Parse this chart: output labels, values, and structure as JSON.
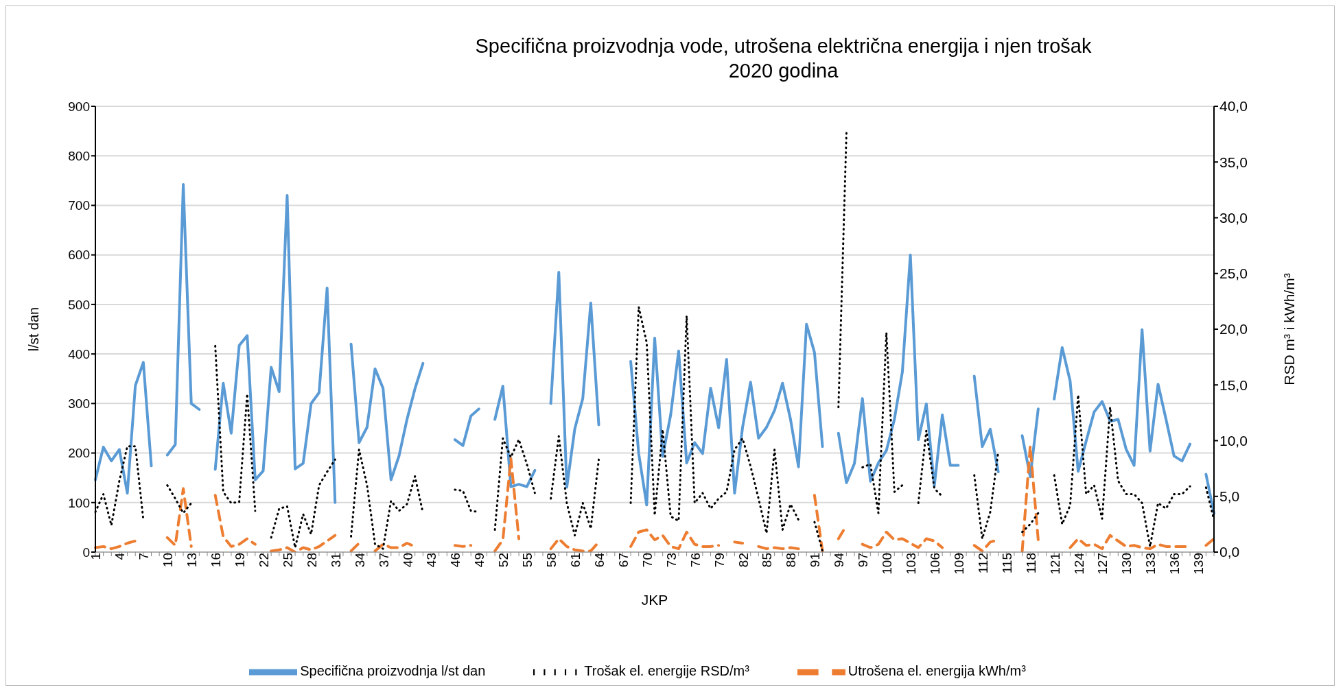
{
  "chart_data": {
    "type": "line",
    "title": "Specifična proizvodnja vode, utrošena električna energija i njen trošak",
    "subtitle": "2020 godina",
    "xlabel": "JKP",
    "ylabel": "l/st dan",
    "y2label": "RSD m³ i  kWh/m³",
    "categories": [
      "1",
      null,
      null,
      "4",
      null,
      null,
      "7",
      null,
      null,
      "10",
      null,
      null,
      "13",
      null,
      null,
      "16",
      null,
      null,
      "19",
      null,
      null,
      "22",
      null,
      null,
      "25",
      null,
      null,
      "28",
      null,
      null,
      "31",
      null,
      null,
      "34",
      null,
      null,
      "37",
      null,
      null,
      "40",
      null,
      null,
      "43",
      null,
      null,
      "46",
      null,
      null,
      "49",
      null,
      null,
      "52",
      null,
      null,
      "55",
      null,
      null,
      "58",
      null,
      null,
      "61",
      null,
      null,
      "64",
      null,
      null,
      "67",
      null,
      null,
      "70",
      null,
      null,
      "73",
      null,
      null,
      "76",
      null,
      null,
      "79",
      null,
      null,
      "82",
      null,
      null,
      "85",
      null,
      null,
      "88",
      null,
      null,
      "91",
      null,
      null,
      "94",
      null,
      null,
      "97",
      null,
      null,
      "100",
      null,
      null,
      "103",
      null,
      null,
      "106",
      null,
      null,
      "109",
      null,
      null,
      "112",
      null,
      null,
      "115",
      null,
      null,
      "118",
      null,
      null,
      "121",
      null,
      null,
      "124",
      null,
      null,
      "127",
      null,
      null,
      "130",
      null,
      null,
      "133",
      null,
      null,
      "136",
      null,
      null,
      "139",
      null,
      null
    ],
    "series": [
      {
        "name": "Specifična proizvodnja l/st dan",
        "color": "#5b9bd5",
        "line_style": "solid",
        "values": [
          146,
          212,
          184,
          207,
          119,
          336,
          383,
          174,
          null,
          196,
          217,
          742,
          300,
          288,
          null,
          167,
          341,
          240,
          417,
          437,
          146,
          164,
          373,
          324,
          720,
          168,
          179,
          300,
          322,
          533,
          100,
          null,
          420,
          221,
          252,
          370,
          331,
          146,
          194,
          268,
          330,
          381,
          null,
          null,
          null,
          227,
          215,
          275,
          289,
          null,
          268,
          335,
          132,
          137,
          132,
          165,
          null,
          300,
          565,
          131,
          249,
          310,
          503,
          257,
          null,
          null,
          null,
          385,
          199,
          95,
          432,
          193,
          277,
          406,
          180,
          221,
          199,
          331,
          251,
          389,
          119,
          252,
          343,
          230,
          252,
          286,
          341,
          268,
          172,
          460,
          403,
          213,
          null,
          240,
          140,
          179,
          310,
          143,
          180,
          205,
          268,
          364,
          600,
          227,
          299,
          134,
          277,
          175,
          175,
          null,
          355,
          213,
          248,
          162,
          null,
          null,
          235,
          152,
          289,
          null,
          309,
          413,
          345,
          163,
          224,
          283,
          304,
          264,
          268,
          208,
          175,
          449,
          204,
          339,
          268,
          194,
          184,
          218,
          null,
          157,
          78
        ]
      },
      {
        "name": "Utrošena el. energija kWh/m³",
        "color": "#ed7d31",
        "line_style": "dashed",
        "axis": "y2",
        "values": [
          0.4,
          0.5,
          0.3,
          0.5,
          0.8,
          1.0,
          null,
          null,
          null,
          1.3,
          0.6,
          5.7,
          0.5,
          null,
          null,
          5.1,
          1.4,
          0.5,
          0.7,
          1.2,
          0.7,
          null,
          0.1,
          0.2,
          0.4,
          0.0,
          0.4,
          0.2,
          0.5,
          1.0,
          1.5,
          null,
          0.1,
          0.8,
          null,
          0.1,
          0.7,
          0.4,
          0.4,
          0.8,
          0.5,
          null,
          null,
          null,
          null,
          0.6,
          0.5,
          0.6,
          null,
          null,
          0.1,
          1.1,
          8.4,
          1.2,
          null,
          null,
          null,
          0.3,
          1.2,
          0.5,
          0.2,
          0.1,
          0.1,
          0.9,
          null,
          null,
          null,
          0.5,
          1.8,
          2.0,
          1.1,
          1.5,
          0.5,
          0.3,
          1.8,
          0.7,
          0.5,
          0.5,
          0.6,
          null,
          0.9,
          0.8,
          null,
          0.5,
          0.3,
          0.4,
          0.3,
          0.4,
          0.3,
          null,
          5.1,
          0.1,
          null,
          1.2,
          2.4,
          null,
          0.7,
          0.4,
          0.7,
          1.8,
          1.1,
          1.2,
          0.8,
          0.4,
          1.2,
          1.0,
          0.4,
          null,
          null,
          null,
          0.6,
          0.1,
          0.9,
          1.1,
          null,
          null,
          0.1,
          9.5,
          1.1,
          null,
          null,
          null,
          0.4,
          1.2,
          0.6,
          0.7,
          0.3,
          1.5,
          1.0,
          0.5,
          0.6,
          0.4,
          0.3,
          0.7,
          0.5,
          0.5,
          0.5,
          0.5,
          null,
          0.6,
          1.2
        ]
      },
      {
        "name": "Trošak el. energije RSD/m³",
        "color": "#000000",
        "line_style": "dotted",
        "axis": "y2",
        "values": [
          3.6,
          5.2,
          2.4,
          6.4,
          9.5,
          9.5,
          2.9,
          null,
          null,
          6.0,
          4.8,
          3.5,
          4.4,
          null,
          null,
          18.5,
          5.4,
          4.4,
          4.5,
          14.2,
          3.7,
          null,
          1.3,
          3.9,
          4.1,
          0.4,
          3.4,
          1.6,
          6.0,
          7.2,
          8.3,
          null,
          1.4,
          9.2,
          6.0,
          0.7,
          0.3,
          4.6,
          3.7,
          4.3,
          6.8,
          3.5,
          null,
          null,
          null,
          5.6,
          5.5,
          3.7,
          3.6,
          null,
          2.0,
          10.2,
          8.5,
          10.1,
          7.9,
          5.3,
          null,
          4.8,
          10.4,
          4.4,
          1.5,
          4.4,
          2.1,
          8.3,
          null,
          null,
          null,
          4.4,
          22.0,
          18.8,
          3.3,
          11.0,
          3.2,
          2.8,
          21.2,
          4.4,
          5.3,
          3.9,
          4.8,
          5.4,
          9.2,
          10.2,
          7.7,
          4.8,
          1.7,
          9.2,
          2.0,
          4.3,
          2.9,
          null,
          2.7,
          0.1,
          null,
          13.0,
          37.6,
          null,
          7.6,
          7.9,
          3.5,
          19.7,
          5.4,
          6.0,
          null,
          4.4,
          10.9,
          5.7,
          5.0,
          null,
          null,
          null,
          6.9,
          1.2,
          3.6,
          9.0,
          null,
          null,
          1.8,
          2.5,
          3.5,
          null,
          6.9,
          2.5,
          4.2,
          14.1,
          5.2,
          6.0,
          3.0,
          13.0,
          6.4,
          5.2,
          5.2,
          4.4,
          0.5,
          4.4,
          3.9,
          5.2,
          5.2,
          5.9,
          null,
          5.8,
          2.9
        ]
      }
    ],
    "ylim": [
      0,
      900
    ],
    "yticks": [
      0,
      100,
      200,
      300,
      400,
      500,
      600,
      700,
      800,
      900
    ],
    "y2lim": [
      0,
      40
    ],
    "y2ticks": [
      {
        "value": 0,
        "label": "0,0"
      },
      {
        "value": 5,
        "label": "5,0"
      },
      {
        "value": 10,
        "label": "10,0"
      },
      {
        "value": 15,
        "label": "15,0"
      },
      {
        "value": 20,
        "label": "20,0"
      },
      {
        "value": 25,
        "label": "25,0"
      },
      {
        "value": 30,
        "label": "30,0"
      },
      {
        "value": 35,
        "label": "35,0"
      },
      {
        "value": 40,
        "label": "40,0"
      }
    ],
    "grid": "y",
    "legend": "bottom",
    "marker": "none"
  }
}
